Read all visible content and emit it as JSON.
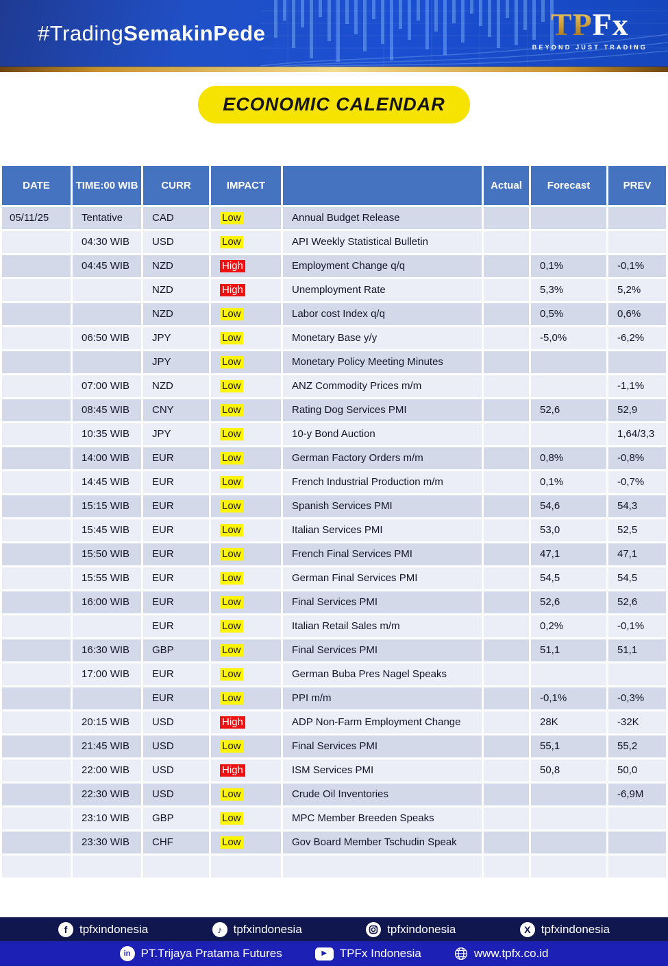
{
  "header": {
    "hashtag_light": "#Trading",
    "hashtag_bold": "SemakinPede",
    "logo_tp": "TP",
    "logo_fx": "Fx",
    "logo_tagline": "BEYOND JUST TRADING"
  },
  "title_badge": "ECONOMIC CALENDAR",
  "table": {
    "columns": [
      "DATE",
      "TIME:00 WIB",
      "CURR",
      "IMPACT",
      "",
      "Actual",
      "Forecast",
      "PREV"
    ],
    "rows": [
      {
        "date": "05/11/25",
        "time": "Tentative",
        "curr": "CAD",
        "impact": "Low",
        "event": "Annual Budget Release",
        "actual": "",
        "forecast": "",
        "prev": ""
      },
      {
        "date": "",
        "time": "04:30 WIB",
        "curr": "USD",
        "impact": "Low",
        "event": "API Weekly Statistical Bulletin",
        "actual": "",
        "forecast": "",
        "prev": ""
      },
      {
        "date": "",
        "time": "04:45 WIB",
        "curr": "NZD",
        "impact": "High",
        "event": "Employment Change q/q",
        "actual": "",
        "forecast": "0,1%",
        "prev": "-0,1%"
      },
      {
        "date": "",
        "time": "",
        "curr": "NZD",
        "impact": "High",
        "event": "Unemployment Rate",
        "actual": "",
        "forecast": "5,3%",
        "prev": "5,2%"
      },
      {
        "date": "",
        "time": "",
        "curr": "NZD",
        "impact": "Low",
        "event": "Labor cost Index q/q",
        "actual": "",
        "forecast": "0,5%",
        "prev": "0,6%"
      },
      {
        "date": "",
        "time": "06:50 WIB",
        "curr": "JPY",
        "impact": "Low",
        "event": "Monetary Base y/y",
        "actual": "",
        "forecast": "-5,0%",
        "prev": "-6,2%"
      },
      {
        "date": "",
        "time": "",
        "curr": "JPY",
        "impact": "Low",
        "event": "Monetary Policy Meeting Minutes",
        "actual": "",
        "forecast": "",
        "prev": ""
      },
      {
        "date": "",
        "time": "07:00 WIB",
        "curr": "NZD",
        "impact": "Low",
        "event": "ANZ Commodity Prices m/m",
        "actual": "",
        "forecast": "",
        "prev": "-1,1%"
      },
      {
        "date": "",
        "time": "08:45 WIB",
        "curr": "CNY",
        "impact": "Low",
        "event": "Rating Dog Services PMI",
        "actual": "",
        "forecast": "52,6",
        "prev": "52,9"
      },
      {
        "date": "",
        "time": "10:35 WIB",
        "curr": "JPY",
        "impact": "Low",
        "event": "10-y Bond Auction",
        "actual": "",
        "forecast": "",
        "prev": "1,64/3,3"
      },
      {
        "date": "",
        "time": "14:00 WIB",
        "curr": "EUR",
        "impact": "Low",
        "event": "German Factory Orders m/m",
        "actual": "",
        "forecast": "0,8%",
        "prev": "-0,8%"
      },
      {
        "date": "",
        "time": "14:45 WIB",
        "curr": "EUR",
        "impact": "Low",
        "event": "French Industrial Production m/m",
        "actual": "",
        "forecast": "0,1%",
        "prev": "-0,7%"
      },
      {
        "date": "",
        "time": "15:15 WIB",
        "curr": "EUR",
        "impact": "Low",
        "event": "Spanish Services PMI",
        "actual": "",
        "forecast": "54,6",
        "prev": "54,3"
      },
      {
        "date": "",
        "time": "15:45 WIB",
        "curr": "EUR",
        "impact": "Low",
        "event": "Italian Services PMI",
        "actual": "",
        "forecast": "53,0",
        "prev": "52,5"
      },
      {
        "date": "",
        "time": "15:50 WIB",
        "curr": "EUR",
        "impact": "Low",
        "event": "French Final Services PMI",
        "actual": "",
        "forecast": "47,1",
        "prev": "47,1"
      },
      {
        "date": "",
        "time": "15:55 WIB",
        "curr": "EUR",
        "impact": "Low",
        "event": "German Final Services PMI",
        "actual": "",
        "forecast": "54,5",
        "prev": "54,5"
      },
      {
        "date": "",
        "time": "16:00 WIB",
        "curr": "EUR",
        "impact": "Low",
        "event": "Final Services PMI",
        "actual": "",
        "forecast": "52,6",
        "prev": "52,6"
      },
      {
        "date": "",
        "time": "",
        "curr": "EUR",
        "impact": "Low",
        "event": "Italian Retail Sales m/m",
        "actual": "",
        "forecast": "0,2%",
        "prev": "-0,1%"
      },
      {
        "date": "",
        "time": "16:30 WIB",
        "curr": "GBP",
        "impact": "Low",
        "event": "Final Services PMI",
        "actual": "",
        "forecast": "51,1",
        "prev": "51,1"
      },
      {
        "date": "",
        "time": "17:00 WIB",
        "curr": "EUR",
        "impact": "Low",
        "event": "German Buba Pres Nagel Speaks",
        "actual": "",
        "forecast": "",
        "prev": ""
      },
      {
        "date": "",
        "time": "",
        "curr": "EUR",
        "impact": "Low",
        "event": "PPI m/m",
        "actual": "",
        "forecast": "-0,1%",
        "prev": "-0,3%"
      },
      {
        "date": "",
        "time": "20:15 WIB",
        "curr": "USD",
        "impact": "High",
        "event": "ADP Non-Farm Employment Change",
        "actual": "",
        "forecast": "28K",
        "prev": "-32K"
      },
      {
        "date": "",
        "time": "21:45 WIB",
        "curr": "USD",
        "impact": "Low",
        "event": "Final Services PMI",
        "actual": "",
        "forecast": "55,1",
        "prev": "55,2"
      },
      {
        "date": "",
        "time": "22:00 WIB",
        "curr": "USD",
        "impact": "High",
        "event": "ISM Services PMI",
        "actual": "",
        "forecast": "50,8",
        "prev": "50,0"
      },
      {
        "date": "",
        "time": "22:30 WIB",
        "curr": "USD",
        "impact": "Low",
        "event": "Crude Oil Inventories",
        "actual": "",
        "forecast": "",
        "prev": "-6,9M"
      },
      {
        "date": "",
        "time": "23:10 WIB",
        "curr": "GBP",
        "impact": "Low",
        "event": "MPC Member Breeden Speaks",
        "actual": "",
        "forecast": "",
        "prev": ""
      },
      {
        "date": "",
        "time": "23:30 WIB",
        "curr": "CHF",
        "impact": "Low",
        "event": "Gov Board Member Tschudin Speak",
        "actual": "",
        "forecast": "",
        "prev": ""
      },
      {
        "date": "",
        "time": "",
        "curr": "",
        "impact": "",
        "event": "",
        "actual": "",
        "forecast": "",
        "prev": ""
      }
    ]
  },
  "footer": {
    "social_row": [
      {
        "icon": "facebook-icon",
        "label": "tpfxindonesia"
      },
      {
        "icon": "tiktok-icon",
        "label": "tpfxindonesia"
      },
      {
        "icon": "instagram-icon",
        "label": "tpfxindonesia"
      },
      {
        "icon": "x-icon",
        "label": "tpfxindonesia"
      }
    ],
    "company_row": [
      {
        "icon": "linkedin-icon",
        "label": "PT.Trijaya Pratama Futures"
      },
      {
        "icon": "youtube-icon",
        "label": "TPFx Indonesia"
      },
      {
        "icon": "globe-icon",
        "label": "www.tpfx.co.id"
      }
    ]
  },
  "colors": {
    "header_blue": "#4673C0",
    "row_dark": "#D4D9E9",
    "row_light": "#EBEEF7",
    "badge_yellow": "#F6E301",
    "impact_low_bg": "#FFF500",
    "impact_high_bg": "#F01010",
    "footer_dark_navy": "#10174E",
    "footer_royal_blue": "#1D20B4",
    "gold": "#C8922E"
  }
}
